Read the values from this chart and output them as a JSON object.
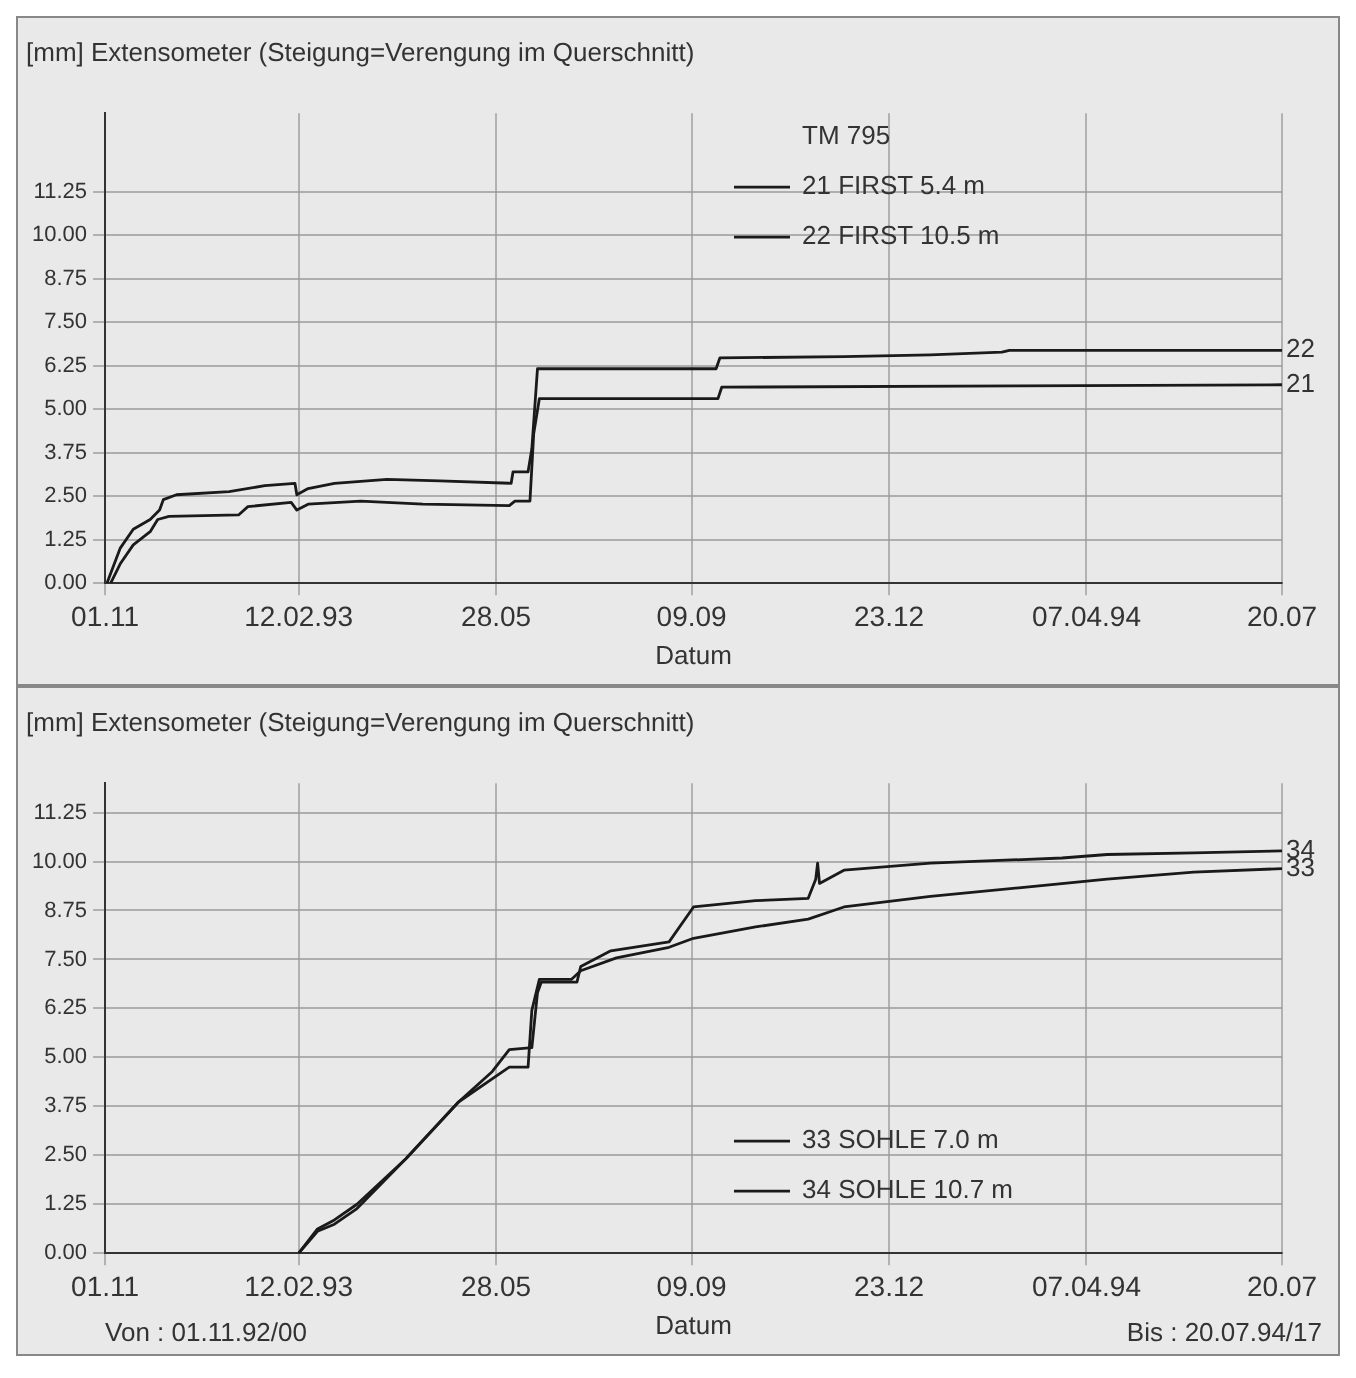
{
  "chart_data": [
    {
      "type": "line",
      "title": "[mm] Extensometer (Steigung=Verengung im Querschnitt)",
      "xlabel": "Datum",
      "legend_title": "TM 795",
      "legend": "top right",
      "grid": true,
      "xlim": [
        "1992-11-01",
        "1994-07-20"
      ],
      "xticks": [
        {
          "value": "1992-11-01",
          "label": "01.11"
        },
        {
          "value": "1993-02-12",
          "label": "12.02.93"
        },
        {
          "value": "1993-05-28",
          "label": "28.05"
        },
        {
          "value": "1993-09-09",
          "label": "09.09"
        },
        {
          "value": "1993-12-23",
          "label": "23.12"
        },
        {
          "value": "1994-04-07",
          "label": "07.04.94"
        },
        {
          "value": "1994-07-20",
          "label": "20.07"
        }
      ],
      "ylim": [
        0,
        13.5
      ],
      "yticks": [
        {
          "value": 0,
          "label": "0.00"
        },
        {
          "value": 1.25,
          "label": "1.25"
        },
        {
          "value": 2.5,
          "label": "2.50"
        },
        {
          "value": 3.75,
          "label": "3.75"
        },
        {
          "value": 5,
          "label": "5.00"
        },
        {
          "value": 6.25,
          "label": "6.25"
        },
        {
          "value": 7.5,
          "label": "7.50"
        },
        {
          "value": 8.75,
          "label": "8.75"
        },
        {
          "value": 10,
          "label": "10.00"
        },
        {
          "value": 11.25,
          "label": "11.25"
        }
      ],
      "series": [
        {
          "name": "21 FIRST 5.4 m",
          "color": "#1a1a1a",
          "x": [
            "1992-11-04",
            "1992-11-09",
            "1992-11-16",
            "1992-11-25",
            "1992-11-29",
            "1992-12-05",
            "1993-01-11",
            "1993-01-16",
            "1993-02-08",
            "1993-02-11",
            "1993-02-17",
            "1993-03-17",
            "1993-04-19",
            "1993-06-04",
            "1993-06-07",
            "1993-06-15",
            "1993-06-17",
            "1993-06-20",
            "1993-09-23",
            "1993-09-25",
            "1994-03-02",
            "1994-07-20"
          ],
          "values": [
            0,
            0.55,
            1.1,
            1.48,
            1.83,
            1.92,
            1.96,
            2.2,
            2.32,
            2.1,
            2.27,
            2.36,
            2.27,
            2.23,
            2.36,
            2.36,
            4.3,
            5.3,
            5.3,
            5.63,
            5.67,
            5.7
          ]
        },
        {
          "name": "22 FIRST 10.5 m",
          "color": "#1a1a1a",
          "x": [
            "1992-11-02",
            "1992-11-09",
            "1992-11-16",
            "1992-11-25",
            "1992-11-30",
            "1992-12-02",
            "1992-12-09",
            "1993-01-06",
            "1993-01-25",
            "1993-02-10",
            "1993-02-11",
            "1993-02-17",
            "1993-03-03",
            "1993-03-31",
            "1993-04-28",
            "1993-06-05",
            "1993-06-06",
            "1993-06-14",
            "1993-06-16",
            "1993-06-19",
            "1993-09-22",
            "1993-09-24",
            "1993-11-29",
            "1994-01-14",
            "1994-02-21",
            "1994-02-25",
            "1994-07-20"
          ],
          "values": [
            0,
            1.0,
            1.55,
            1.83,
            2.1,
            2.4,
            2.54,
            2.63,
            2.8,
            2.87,
            2.54,
            2.72,
            2.87,
            2.98,
            2.94,
            2.87,
            3.2,
            3.2,
            3.86,
            6.16,
            6.16,
            6.47,
            6.51,
            6.56,
            6.64,
            6.69,
            6.69
          ]
        }
      ],
      "annotations": [
        {
          "text": "22",
          "x": "1994-07-20",
          "y": 6.69
        },
        {
          "text": "21",
          "x": "1994-07-20",
          "y": 5.7
        }
      ]
    },
    {
      "type": "line",
      "title": "[mm] Extensometer (Steigung=Verengung im Querschnitt)",
      "xlabel": "Datum",
      "legend": "bottom right",
      "grid": true,
      "xlim": [
        "1992-11-01",
        "1994-07-20"
      ],
      "xticks": [
        {
          "value": "1992-11-01",
          "label": "01.11"
        },
        {
          "value": "1993-02-12",
          "label": "12.02.93"
        },
        {
          "value": "1993-05-28",
          "label": "28.05"
        },
        {
          "value": "1993-09-09",
          "label": "09.09"
        },
        {
          "value": "1993-12-23",
          "label": "23.12"
        },
        {
          "value": "1994-04-07",
          "label": "07.04.94"
        },
        {
          "value": "1994-07-20",
          "label": "20.07"
        }
      ],
      "ylim": [
        0,
        12
      ],
      "yticks": [
        {
          "value": 0,
          "label": "0.00"
        },
        {
          "value": 1.25,
          "label": "1.25"
        },
        {
          "value": 2.5,
          "label": "2.50"
        },
        {
          "value": 3.75,
          "label": "3.75"
        },
        {
          "value": 5,
          "label": "5.00"
        },
        {
          "value": 6.25,
          "label": "6.25"
        },
        {
          "value": 7.5,
          "label": "7.50"
        },
        {
          "value": 8.75,
          "label": "8.75"
        },
        {
          "value": 10,
          "label": "10.00"
        },
        {
          "value": 11.25,
          "label": "11.25"
        }
      ],
      "series": [
        {
          "name": "33 SOHLE 7.0 m",
          "color": "#1a1a1a",
          "x": [
            "1993-02-12",
            "1993-02-22",
            "1993-03-03",
            "1993-03-15",
            "1993-04-10",
            "1993-05-08",
            "1993-06-04",
            "1993-06-14",
            "1993-06-16",
            "1993-06-20",
            "1993-07-07",
            "1993-07-12",
            "1993-07-31",
            "1993-08-28",
            "1993-09-10",
            "1993-10-13",
            "1993-11-10",
            "1993-11-29",
            "1994-01-14",
            "1994-03-02",
            "1994-04-18",
            "1994-06-03",
            "1994-07-20"
          ],
          "values": [
            0,
            0.56,
            0.74,
            1.14,
            2.41,
            3.86,
            4.75,
            4.75,
            6.2,
            6.99,
            6.99,
            7.21,
            7.54,
            7.81,
            8.04,
            8.33,
            8.53,
            8.84,
            9.11,
            9.33,
            9.55,
            9.73,
            9.82
          ]
        },
        {
          "name": "34 SOHLE 10.7 m",
          "color": "#1a1a1a",
          "x": [
            "1993-02-12",
            "1993-02-22",
            "1993-03-03",
            "1993-03-15",
            "1993-04-10",
            "1993-05-08",
            "1993-05-26",
            "1993-06-04",
            "1993-06-16",
            "1993-06-19",
            "1993-06-21",
            "1993-07-10",
            "1993-07-12",
            "1993-07-28",
            "1993-08-28",
            "1993-09-10",
            "1993-10-13",
            "1993-11-10",
            "1993-11-14",
            "1993-11-15",
            "1993-11-16",
            "1993-11-29",
            "1994-01-14",
            "1994-03-25",
            "1994-04-18",
            "1994-06-03",
            "1994-07-20"
          ],
          "values": [
            0,
            0.62,
            0.85,
            1.25,
            2.41,
            3.86,
            4.64,
            5.2,
            5.25,
            6.65,
            6.92,
            6.92,
            7.32,
            7.72,
            7.95,
            8.84,
            9.0,
            9.06,
            9.55,
            9.96,
            9.44,
            9.78,
            9.96,
            10.09,
            10.18,
            10.22,
            10.27
          ]
        }
      ],
      "annotations": [
        {
          "text": "34",
          "x": "1994-07-20",
          "y": 10.27
        },
        {
          "text": "33",
          "x": "1994-07-20",
          "y": 9.82
        },
        "Von : 01.11.92/00",
        "Bis : 20.07.94/17"
      ]
    }
  ]
}
